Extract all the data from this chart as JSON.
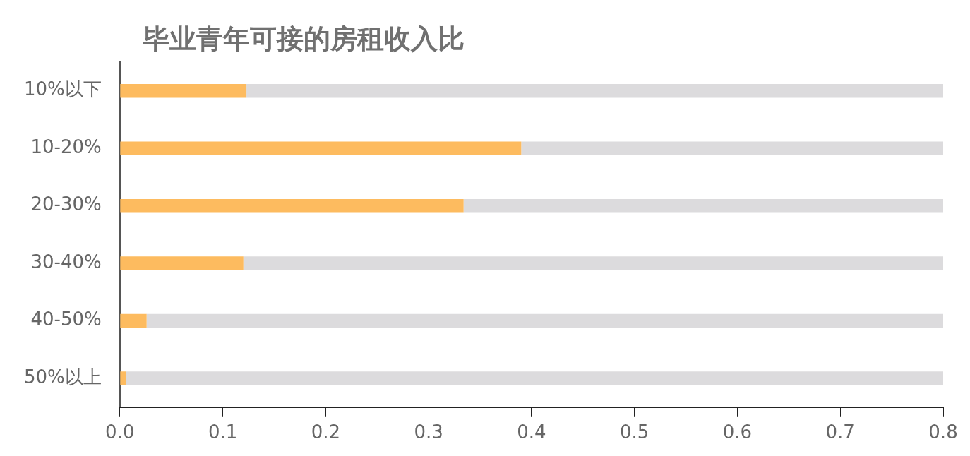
{
  "chart_data": {
    "type": "bar",
    "orientation": "horizontal",
    "stacked": true,
    "title": "毕业青年可接的房租收入比",
    "categories": [
      "10%以下",
      "10-20%",
      "20-30%",
      "30-40%",
      "40-50%",
      "50%以上"
    ],
    "series": [
      {
        "color": "#fdbb5f",
        "values": [
          0.123,
          0.39,
          0.334,
          0.12,
          0.026,
          0.006
        ]
      },
      {
        "color": "#dcdbdd",
        "values": [
          0.677,
          0.41,
          0.466,
          0.68,
          0.774,
          0.794
        ]
      }
    ],
    "xlim": [
      0,
      0.8
    ],
    "xticks": [
      {
        "value": 0,
        "label": "0.0"
      },
      0.1,
      0.2,
      0.3,
      0.4,
      0.5,
      0.6,
      0.7,
      0.8
    ],
    "grid": false,
    "legend": false
  }
}
